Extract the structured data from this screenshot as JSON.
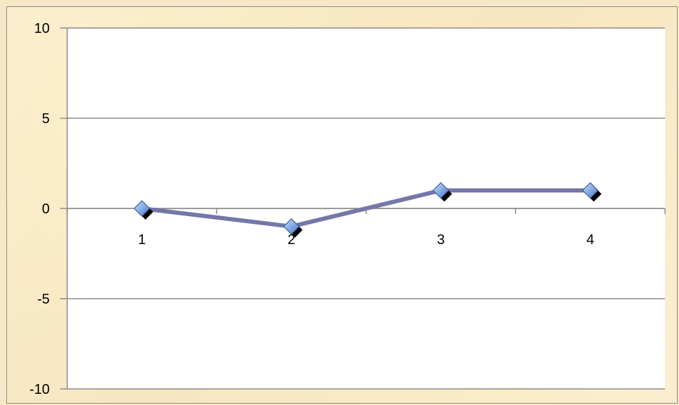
{
  "chart_data": {
    "type": "line",
    "title": "",
    "xlabel": "",
    "ylabel": "",
    "categories": [
      "1",
      "2",
      "3",
      "4"
    ],
    "series": [
      {
        "values": [
          0,
          -1,
          1,
          1
        ],
        "color": "#7478a8",
        "marker": "diamond",
        "marker_color": "#8fb3e8"
      }
    ],
    "ylim": [
      -10,
      10
    ],
    "yticks": [
      10,
      5,
      0,
      -5,
      -10
    ],
    "grid": true,
    "legend": "none"
  }
}
